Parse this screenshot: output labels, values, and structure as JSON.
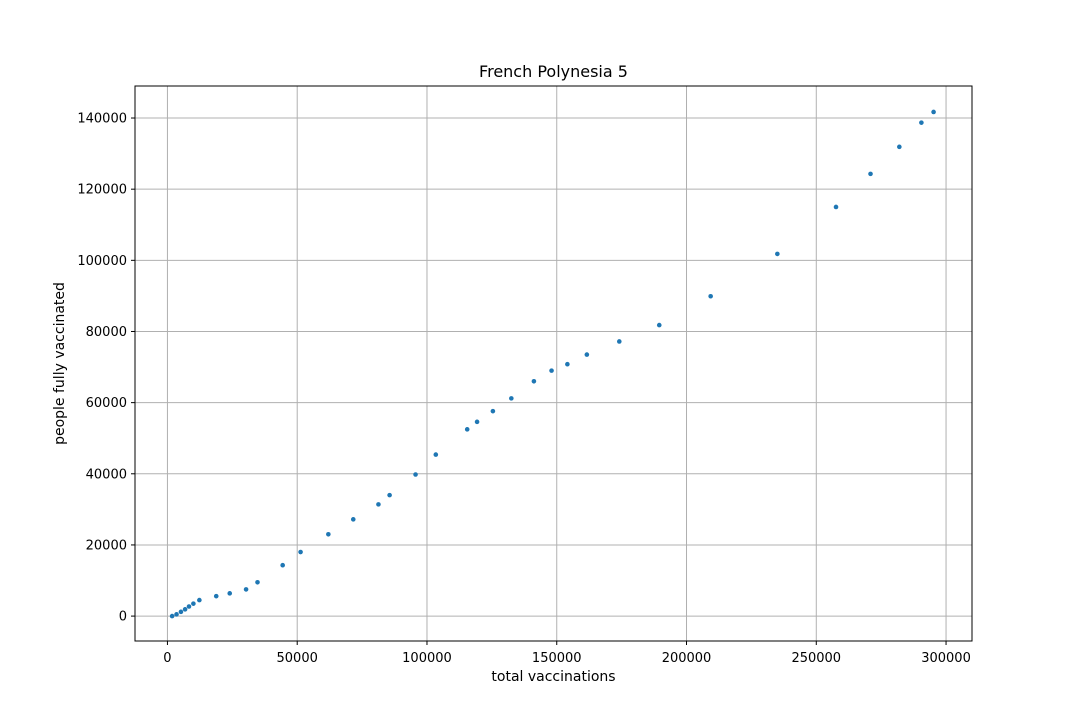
{
  "chart_data": {
    "type": "scatter",
    "title": "French Polynesia 5",
    "xlabel": "total vaccinations",
    "ylabel": "people fully vaccinated",
    "xlim": [
      -12500,
      310000
    ],
    "ylim": [
      -7000,
      149000
    ],
    "xticks": [
      0,
      50000,
      100000,
      150000,
      200000,
      250000,
      300000
    ],
    "yticks": [
      0,
      20000,
      40000,
      60000,
      80000,
      100000,
      120000,
      140000
    ],
    "grid": true,
    "point_color": "#1f77b4",
    "points": [
      [
        1800,
        0
      ],
      [
        3500,
        500
      ],
      [
        5200,
        1200
      ],
      [
        6800,
        1900
      ],
      [
        8300,
        2700
      ],
      [
        10000,
        3500
      ],
      [
        12300,
        4500
      ],
      [
        18800,
        5600
      ],
      [
        24000,
        6400
      ],
      [
        30300,
        7500
      ],
      [
        34700,
        9500
      ],
      [
        44400,
        14300
      ],
      [
        51300,
        18000
      ],
      [
        62000,
        23000
      ],
      [
        71600,
        27200
      ],
      [
        81300,
        31400
      ],
      [
        85600,
        34000
      ],
      [
        95600,
        39800
      ],
      [
        103400,
        45400
      ],
      [
        115500,
        52500
      ],
      [
        119300,
        54600
      ],
      [
        125400,
        57600
      ],
      [
        132500,
        61200
      ],
      [
        141200,
        66000
      ],
      [
        148000,
        69000
      ],
      [
        154100,
        70800
      ],
      [
        161600,
        73500
      ],
      [
        174100,
        77200
      ],
      [
        189500,
        81800
      ],
      [
        209300,
        89900
      ],
      [
        235000,
        101800
      ],
      [
        257600,
        115000
      ],
      [
        270900,
        124300
      ],
      [
        282000,
        131900
      ],
      [
        290500,
        138700
      ],
      [
        295200,
        141700
      ]
    ]
  }
}
